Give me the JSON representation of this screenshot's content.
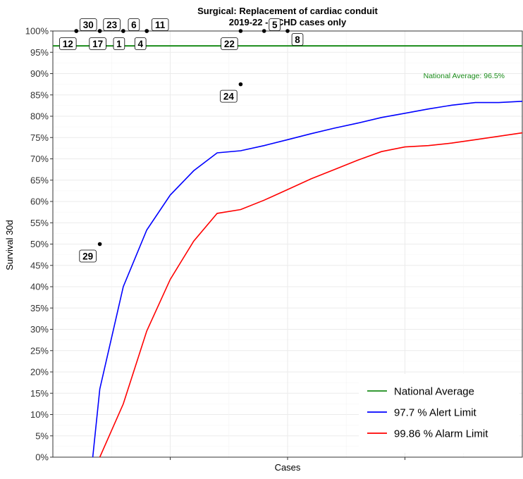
{
  "chart_data": {
    "type": "scatter",
    "title": "Surgical: Replacement of cardiac conduit",
    "subtitle": "2019-22 - ACHD cases only",
    "xlabel": "Cases",
    "ylabel": "Survival 30d",
    "ylim": [
      0,
      1
    ],
    "yticks": [
      "0%",
      "5%",
      "10%",
      "15%",
      "20%",
      "25%",
      "30%",
      "35%",
      "40%",
      "45%",
      "50%",
      "55%",
      "60%",
      "65%",
      "70%",
      "75%",
      "80%",
      "85%",
      "90%",
      "95%",
      "100%"
    ],
    "xlim": [
      0,
      40
    ],
    "grid": true,
    "legend_position": "bottom-right",
    "national_average": {
      "value": 0.965,
      "label": "National Average: 96.5%",
      "color": "#1a8c1a"
    },
    "points": [
      {
        "label": "12",
        "x": 2,
        "y": 1.0
      },
      {
        "label": "30",
        "x": 2,
        "y": 1.0
      },
      {
        "label": "17",
        "x": 4,
        "y": 1.0
      },
      {
        "label": "23",
        "x": 4,
        "y": 1.0
      },
      {
        "label": "1",
        "x": 6,
        "y": 1.0
      },
      {
        "label": "6",
        "x": 6,
        "y": 1.0
      },
      {
        "label": "4",
        "x": 8,
        "y": 1.0
      },
      {
        "label": "11",
        "x": 8,
        "y": 1.0
      },
      {
        "label": "22",
        "x": 16,
        "y": 1.0
      },
      {
        "label": "5",
        "x": 18,
        "y": 1.0
      },
      {
        "label": "8",
        "x": 20,
        "y": 1.0
      },
      {
        "label": "24",
        "x": 16,
        "y": 0.875
      },
      {
        "label": "29",
        "x": 4,
        "y": 0.5
      }
    ],
    "series": [
      {
        "name": "97.7 %  Alert Limit",
        "color": "#0000ff",
        "x": [
          3.4,
          4,
          6,
          8,
          10,
          12,
          14,
          16,
          18,
          20,
          22,
          24,
          26,
          28,
          30,
          32,
          34,
          36,
          38,
          40
        ],
        "y": [
          0.0,
          0.16,
          0.4,
          0.533,
          0.615,
          0.672,
          0.714,
          0.719,
          0.731,
          0.745,
          0.759,
          0.772,
          0.784,
          0.797,
          0.807,
          0.817,
          0.826,
          0.832,
          0.832,
          0.835
        ]
      },
      {
        "name": "99.86 %  Alarm Limit",
        "color": "#ff0000",
        "x": [
          4,
          6,
          8,
          10,
          12,
          14,
          16,
          18,
          20,
          22,
          24,
          26,
          28,
          30,
          32,
          34,
          36,
          38,
          40
        ],
        "y": [
          0.0,
          0.125,
          0.296,
          0.417,
          0.507,
          0.572,
          0.581,
          0.603,
          0.628,
          0.653,
          0.675,
          0.697,
          0.717,
          0.728,
          0.731,
          0.737,
          0.745,
          0.753,
          0.761
        ]
      }
    ],
    "legend": [
      "National Average",
      "97.7 %  Alert Limit",
      "99.86 %  Alarm Limit"
    ]
  }
}
